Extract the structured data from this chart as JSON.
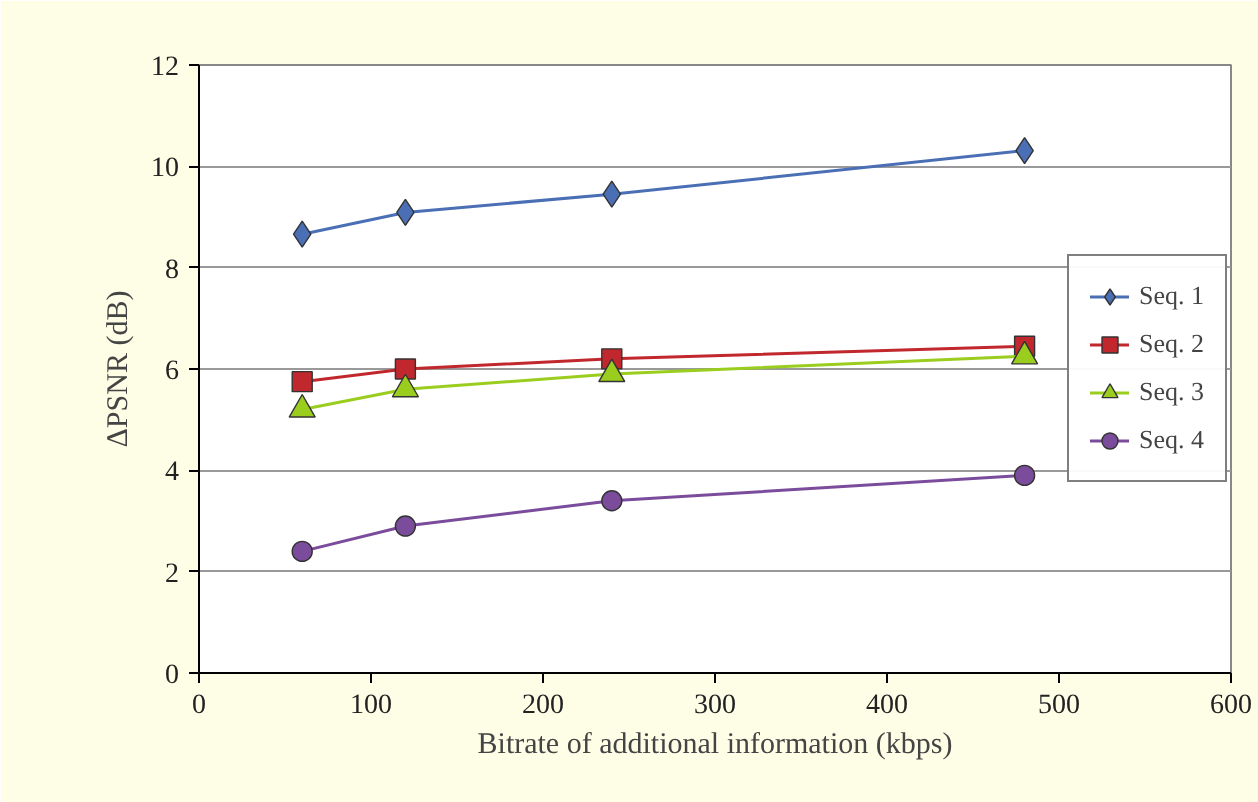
{
  "chart_data": {
    "type": "line",
    "xlabel": "Bitrate of additional information (kbps)",
    "ylabel": "ΔPSNR (dB)",
    "x": [
      60,
      120,
      240,
      480
    ],
    "series": [
      {
        "name": "Seq. 1",
        "color": "#4a6fb5",
        "marker": "diamond",
        "values": [
          8.66,
          9.09,
          9.45,
          10.31
        ]
      },
      {
        "name": "Seq. 2",
        "color": "#c0282d",
        "marker": "square",
        "values": [
          5.75,
          6.0,
          6.2,
          6.45
        ]
      },
      {
        "name": "Seq. 3",
        "color": "#9acd1e",
        "marker": "triangle",
        "values": [
          5.2,
          5.6,
          5.9,
          6.25
        ]
      },
      {
        "name": "Seq. 4",
        "color": "#7b4c9c",
        "marker": "circle",
        "values": [
          2.4,
          2.9,
          3.4,
          3.9
        ]
      }
    ],
    "xlim": [
      0,
      600
    ],
    "xticks": [
      0,
      100,
      200,
      300,
      400,
      500,
      600
    ],
    "ylim": [
      0,
      12
    ],
    "yticks": [
      0,
      2,
      4,
      6,
      8,
      10,
      12
    ],
    "grid": "y",
    "legend": "right",
    "line_style": "solid"
  }
}
